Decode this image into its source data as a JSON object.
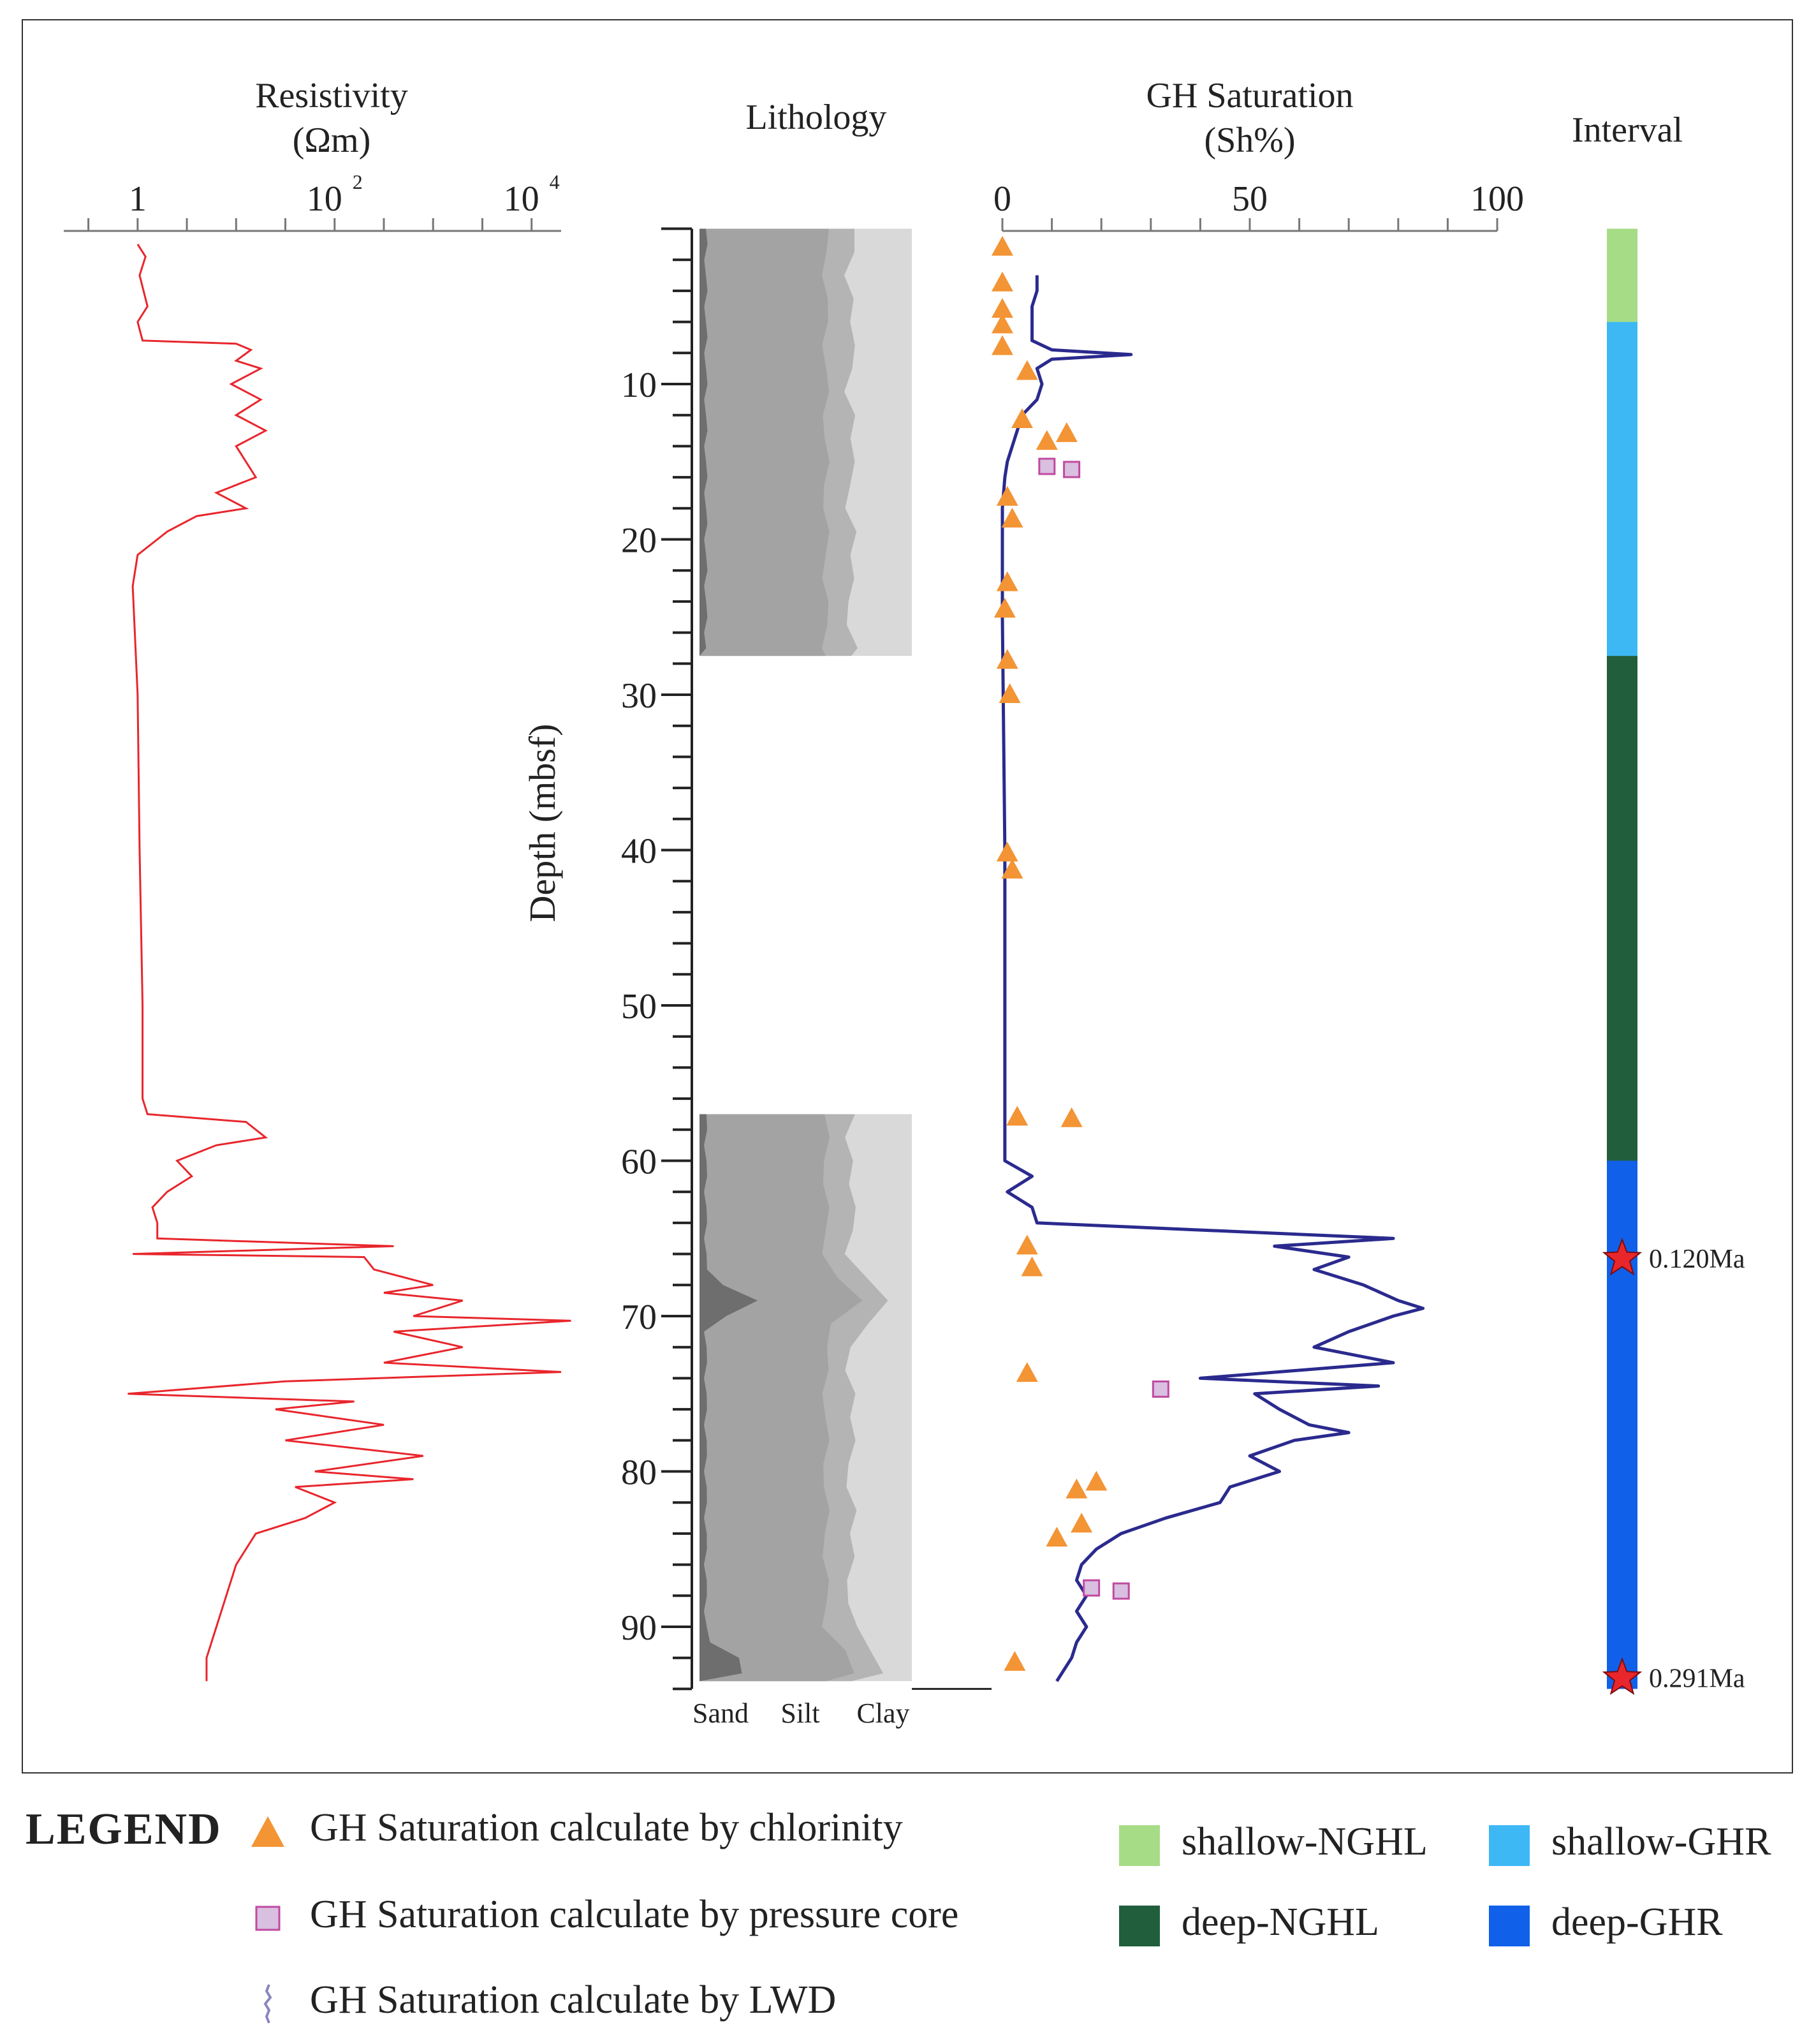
{
  "chart_data": {
    "type": "well-log",
    "depth_axis": {
      "label": "Depth (mbsf)",
      "ticks": [
        10,
        20,
        30,
        40,
        50,
        60,
        70,
        80,
        90
      ],
      "range": [
        0,
        94
      ]
    },
    "resistivity": {
      "title": "Resistivity",
      "unit": "(Ωm)",
      "ticks": [
        {
          "base": "1",
          "exp": ""
        },
        {
          "base": "10",
          "exp": "2"
        },
        {
          "base": "10",
          "exp": "4"
        }
      ],
      "log_range": [
        -0.75,
        4.3
      ],
      "points": [
        [
          1,
          0.0
        ],
        [
          1.8,
          0.08
        ],
        [
          3,
          0.02
        ],
        [
          5,
          0.1
        ],
        [
          6,
          0.0
        ],
        [
          7.2,
          0.05
        ],
        [
          7.4,
          1.0
        ],
        [
          7.8,
          1.15
        ],
        [
          8.5,
          1.0
        ],
        [
          9,
          1.25
        ],
        [
          10,
          0.95
        ],
        [
          11,
          1.25
        ],
        [
          12,
          1.0
        ],
        [
          13,
          1.3
        ],
        [
          14,
          1.0
        ],
        [
          15,
          1.1
        ],
        [
          16,
          1.2
        ],
        [
          17,
          0.8
        ],
        [
          18,
          1.1
        ],
        [
          18.5,
          0.6
        ],
        [
          19.5,
          0.3
        ],
        [
          21,
          0.0
        ],
        [
          23,
          -0.05
        ],
        [
          30,
          0.0
        ],
        [
          40,
          0.02
        ],
        [
          50,
          0.05
        ],
        [
          56,
          0.05
        ],
        [
          57,
          0.1
        ],
        [
          57.5,
          1.1
        ],
        [
          58.5,
          1.3
        ],
        [
          59,
          0.8
        ],
        [
          60,
          0.4
        ],
        [
          61,
          0.55
        ],
        [
          62,
          0.3
        ],
        [
          63,
          0.15
        ],
        [
          64,
          0.2
        ],
        [
          65,
          0.2
        ],
        [
          65.5,
          2.6
        ],
        [
          66,
          -0.05
        ],
        [
          66.2,
          2.3
        ],
        [
          67,
          2.4
        ],
        [
          68,
          3.0
        ],
        [
          68.5,
          2.5
        ],
        [
          69,
          3.3
        ],
        [
          70,
          2.8
        ],
        [
          70.3,
          4.4
        ],
        [
          71,
          2.6
        ],
        [
          72,
          3.3
        ],
        [
          73,
          2.5
        ],
        [
          73.6,
          4.3
        ],
        [
          74.2,
          1.5
        ],
        [
          75,
          -0.1
        ],
        [
          75.5,
          2.2
        ],
        [
          76,
          1.4
        ],
        [
          77,
          2.5
        ],
        [
          78,
          1.5
        ],
        [
          79,
          2.9
        ],
        [
          80,
          1.8
        ],
        [
          80.5,
          2.8
        ],
        [
          81,
          1.6
        ],
        [
          82,
          2.0
        ],
        [
          83,
          1.7
        ],
        [
          84,
          1.2
        ],
        [
          86,
          1.0
        ],
        [
          88,
          0.9
        ],
        [
          90,
          0.8
        ],
        [
          92,
          0.7
        ],
        [
          93.5,
          0.7
        ]
      ]
    },
    "lithology": {
      "title": "Lithology",
      "axis_labels": [
        "Sand",
        "Silt",
        "Clay"
      ],
      "intervals": [
        [
          0,
          27.5
        ],
        [
          57,
          93.5
        ]
      ],
      "sand_peaks": [
        69,
        92.5
      ]
    },
    "saturation": {
      "title": "GH Saturation",
      "unit": "(Sh%)",
      "ticks": [
        "0",
        "50",
        "100"
      ],
      "xlim": [
        0,
        100
      ],
      "lwd": [
        [
          3,
          7
        ],
        [
          4,
          7
        ],
        [
          5,
          6
        ],
        [
          6,
          6
        ],
        [
          7.2,
          6
        ],
        [
          7.8,
          10
        ],
        [
          8.1,
          26
        ],
        [
          8.4,
          10
        ],
        [
          9,
          7
        ],
        [
          10,
          8
        ],
        [
          11,
          7
        ],
        [
          12,
          4
        ],
        [
          13,
          3
        ],
        [
          14,
          2
        ],
        [
          15,
          1
        ],
        [
          16,
          0.5
        ],
        [
          18,
          0
        ],
        [
          25,
          0
        ],
        [
          40,
          0.5
        ],
        [
          57,
          0.5
        ],
        [
          60,
          0.5
        ],
        [
          61,
          6
        ],
        [
          62,
          1
        ],
        [
          63,
          6
        ],
        [
          64,
          7
        ],
        [
          65,
          79
        ],
        [
          65.5,
          55
        ],
        [
          66.2,
          70
        ],
        [
          67,
          63
        ],
        [
          68,
          73
        ],
        [
          69,
          80
        ],
        [
          69.5,
          85
        ],
        [
          70,
          79
        ],
        [
          71,
          70
        ],
        [
          72,
          63
        ],
        [
          73,
          79
        ],
        [
          74,
          40
        ],
        [
          74.5,
          76
        ],
        [
          75,
          51
        ],
        [
          76,
          56
        ],
        [
          77,
          62
        ],
        [
          77.5,
          70
        ],
        [
          78,
          59
        ],
        [
          79,
          50
        ],
        [
          80,
          56
        ],
        [
          81,
          46
        ],
        [
          82,
          44
        ],
        [
          83,
          33
        ],
        [
          84,
          24
        ],
        [
          85,
          19
        ],
        [
          86,
          16
        ],
        [
          87,
          15
        ],
        [
          88,
          17
        ],
        [
          89,
          15
        ],
        [
          90,
          17
        ],
        [
          91,
          15
        ],
        [
          92,
          14
        ],
        [
          93,
          12
        ],
        [
          93.5,
          11
        ]
      ],
      "chlorinity": [
        [
          1.2,
          0
        ],
        [
          3.5,
          0
        ],
        [
          5.2,
          0
        ],
        [
          6.2,
          0
        ],
        [
          7.6,
          0
        ],
        [
          9.2,
          5
        ],
        [
          12.3,
          4
        ],
        [
          13.2,
          13
        ],
        [
          13.7,
          9
        ],
        [
          17.3,
          1
        ],
        [
          18.7,
          2
        ],
        [
          22.8,
          1
        ],
        [
          24.5,
          0.5
        ],
        [
          27.8,
          1
        ],
        [
          30,
          1.5
        ],
        [
          40.2,
          1
        ],
        [
          41.3,
          2
        ],
        [
          57.2,
          3
        ],
        [
          57.3,
          14
        ],
        [
          65.5,
          5
        ],
        [
          66.9,
          6
        ],
        [
          73.7,
          5
        ],
        [
          80.7,
          19
        ],
        [
          81.2,
          15
        ],
        [
          83.4,
          16
        ],
        [
          84.3,
          11
        ],
        [
          92.3,
          2.5
        ]
      ],
      "pressure_core": [
        [
          15.3,
          9
        ],
        [
          15.5,
          14
        ],
        [
          74.7,
          32
        ],
        [
          87.5,
          18
        ],
        [
          87.7,
          24
        ]
      ]
    },
    "interval": {
      "title": "Interval",
      "segments": [
        {
          "name": "shallow-NGHL",
          "from": 0,
          "to": 6,
          "color": "#a6dc86"
        },
        {
          "name": "shallow-GHR",
          "from": 6,
          "to": 27.5,
          "color": "#3db8f5"
        },
        {
          "name": "deep-NGHL",
          "from": 27.5,
          "to": 60,
          "color": "#215e3c"
        },
        {
          "name": "deep-GHR",
          "from": 60,
          "to": 94,
          "color": "#1160ea"
        }
      ],
      "ages": [
        {
          "depth": 66.3,
          "label": "0.120Ma"
        },
        {
          "depth": 93.3,
          "label": "0.291Ma"
        }
      ]
    }
  },
  "legend": {
    "title": "LEGEND",
    "chlorinity": "GH Saturation calculate by chlorinity",
    "pressure_core": "GH Saturation calculate by pressure core",
    "lwd": "GH Saturation calculate by LWD",
    "shallow_ngh": "shallow-NGHL",
    "shallow_ghr": "shallow-GHR",
    "deep_ngh": "deep-NGHL",
    "deep_ghr": "deep-GHR"
  },
  "colors": {
    "resistivity": "#e8262c",
    "lwd": "#2a2a8e",
    "triangle": "#f39435",
    "square": "#d9bfe0"
  }
}
